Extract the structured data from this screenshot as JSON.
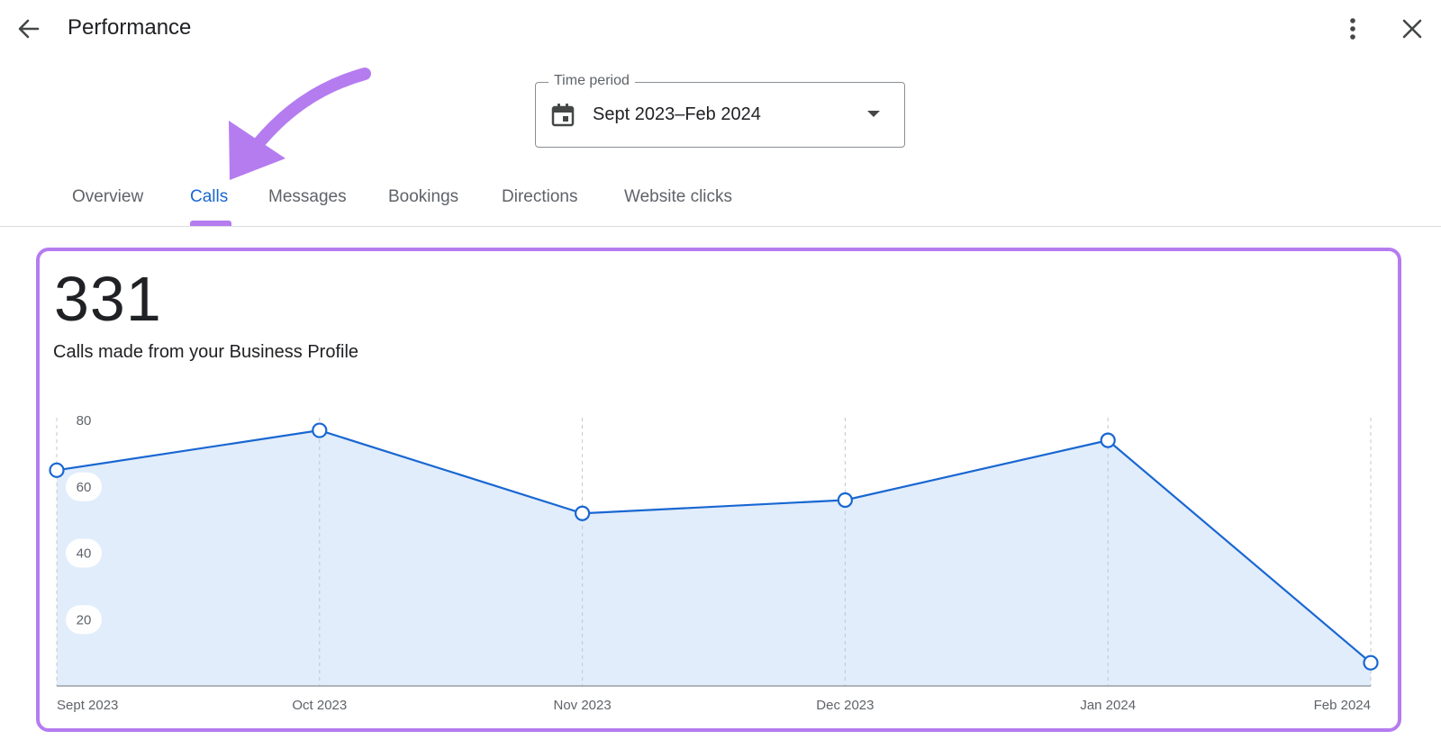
{
  "header": {
    "title": "Performance",
    "back_icon": "arrow-left-icon",
    "more_icon": "more-vertical-icon",
    "close_icon": "close-icon"
  },
  "time_period": {
    "label": "Time period",
    "value": "Sept 2023–Feb 2024",
    "icon": "calendar-icon"
  },
  "tabs": [
    {
      "label": "Overview",
      "active": false
    },
    {
      "label": "Calls",
      "active": true
    },
    {
      "label": "Messages",
      "active": false
    },
    {
      "label": "Bookings",
      "active": false
    },
    {
      "label": "Directions",
      "active": false
    },
    {
      "label": "Website clicks",
      "active": false
    }
  ],
  "metric": {
    "value": "331",
    "label": "Calls made from your Business Profile"
  },
  "colors": {
    "accent": "#1967d2",
    "highlight": "#b57cf0",
    "area_fill": "#e1edfb",
    "line": "#1967d2"
  },
  "chart_data": {
    "type": "area",
    "categories": [
      "Sept 2023",
      "Oct 2023",
      "Nov 2023",
      "Dec 2023",
      "Jan 2024",
      "Feb 2024"
    ],
    "series": [
      {
        "values": [
          65,
          77,
          52,
          56,
          74,
          7
        ]
      }
    ],
    "yticks": [
      20,
      40,
      60,
      80
    ],
    "ylim": [
      0,
      80
    ],
    "grid": "vertical-dashed"
  }
}
